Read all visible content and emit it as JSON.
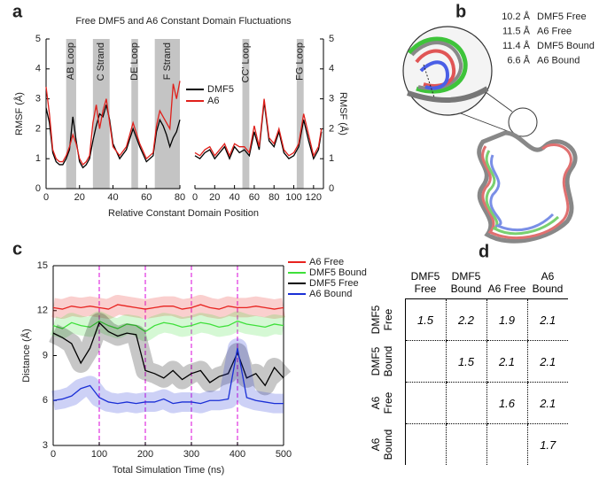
{
  "panels": [
    "a",
    "b",
    "c",
    "d"
  ],
  "chart_data": [
    {
      "type": "line",
      "title": "Free DMF5 and A6 Constant Domain Fluctuations",
      "xlabel": "Relative Constant Domain Position",
      "ylabel": "RMSF (Å)",
      "x": [
        0,
        2,
        4,
        6,
        8,
        10,
        12,
        14,
        16,
        18,
        20,
        22,
        24,
        26,
        28,
        30,
        32,
        34,
        36,
        38,
        40,
        44,
        48,
        52,
        56,
        60,
        64,
        66,
        68,
        70,
        72,
        74,
        76,
        78,
        80
      ],
      "series": [
        {
          "name": "DMF5",
          "color": "#000000",
          "values": [
            2.7,
            2.2,
            1.2,
            0.9,
            0.8,
            0.8,
            1.0,
            1.3,
            2.4,
            1.6,
            0.9,
            0.7,
            0.8,
            1.0,
            1.6,
            2.1,
            2.5,
            2.4,
            2.8,
            2.3,
            1.5,
            1.0,
            1.3,
            2.0,
            1.4,
            0.9,
            1.1,
            1.9,
            2.3,
            2.1,
            1.8,
            1.4,
            1.7,
            1.9,
            2.3
          ]
        },
        {
          "name": "A6",
          "color": "#e0201b",
          "values": [
            3.4,
            2.5,
            1.3,
            1.0,
            0.9,
            0.9,
            1.1,
            1.4,
            1.8,
            1.5,
            1.0,
            0.8,
            0.9,
            1.1,
            2.2,
            2.8,
            2.0,
            2.6,
            3.0,
            2.2,
            1.4,
            1.1,
            1.4,
            2.2,
            1.5,
            1.0,
            1.2,
            2.1,
            2.6,
            2.4,
            2.2,
            2.0,
            3.5,
            3.0,
            3.6
          ]
        }
      ],
      "regions": [
        {
          "label": "AB Loop",
          "range": [
            12,
            18
          ]
        },
        {
          "label": "C Strand",
          "range": [
            28,
            38
          ]
        },
        {
          "label": "DE Loop",
          "range": [
            51,
            55
          ]
        },
        {
          "label": "F Strand",
          "range": [
            65,
            80
          ]
        }
      ],
      "xlim": [
        0,
        80
      ],
      "xticks": [
        0,
        20,
        40,
        60,
        80
      ],
      "ylim": [
        0,
        5
      ],
      "yticks": [
        0,
        1,
        2,
        3,
        4,
        5
      ],
      "legend": "right"
    },
    {
      "type": "line",
      "ylabel": "RMSF (Å)",
      "x": [
        0,
        5,
        10,
        15,
        20,
        25,
        30,
        35,
        40,
        45,
        50,
        55,
        60,
        65,
        70,
        75,
        80,
        85,
        90,
        95,
        100,
        105,
        110,
        115,
        120,
        125,
        128
      ],
      "series": [
        {
          "color": "#000000",
          "values": [
            1.1,
            1.0,
            1.2,
            1.3,
            1.0,
            1.2,
            1.4,
            1.0,
            1.4,
            1.2,
            1.3,
            1.1,
            1.9,
            1.3,
            2.9,
            1.6,
            1.4,
            1.9,
            1.2,
            1.0,
            1.1,
            1.4,
            2.3,
            1.6,
            1.0,
            1.3,
            1.9
          ]
        },
        {
          "color": "#e0201b",
          "values": [
            1.2,
            1.1,
            1.3,
            1.4,
            1.1,
            1.3,
            1.5,
            1.1,
            1.5,
            1.4,
            1.4,
            1.2,
            2.1,
            1.4,
            3.0,
            1.7,
            1.5,
            2.0,
            1.3,
            1.1,
            1.2,
            1.5,
            2.5,
            1.8,
            1.1,
            1.4,
            2.0
          ]
        }
      ],
      "regions": [
        {
          "label": "CC' Loop",
          "range": [
            48,
            55
          ]
        },
        {
          "label": "FG Loop",
          "range": [
            103,
            110
          ]
        }
      ],
      "xlim": [
        0,
        130
      ],
      "xticks": [
        0,
        20,
        40,
        60,
        80,
        100,
        120
      ],
      "ylim": [
        0,
        5
      ],
      "yticks": [
        0,
        1,
        2,
        3,
        4,
        5
      ]
    },
    {
      "type": "line",
      "xlabel": "Total Simulation Time (ns)",
      "ylabel": "Distance (Å)",
      "x": [
        0,
        20,
        40,
        60,
        80,
        100,
        120,
        140,
        160,
        180,
        200,
        220,
        240,
        260,
        280,
        300,
        320,
        340,
        360,
        380,
        400,
        420,
        440,
        460,
        480,
        500
      ],
      "series": [
        {
          "name": "A6 Free",
          "color": "#e8231f",
          "values": [
            12.2,
            12.1,
            12.3,
            12.2,
            12.3,
            12.2,
            12.1,
            12.4,
            12.3,
            12.2,
            12.1,
            12.2,
            12.3,
            12.3,
            12.1,
            12.2,
            12.4,
            12.2,
            12.1,
            12.3,
            12.2,
            12.2,
            12.3,
            12.2,
            12.1,
            12.2
          ]
        },
        {
          "name": "DMF5 Bound",
          "color": "#3ee03a",
          "values": [
            11.0,
            10.8,
            11.2,
            11.0,
            10.9,
            11.3,
            11.0,
            10.8,
            11.1,
            11.0,
            10.6,
            11.0,
            11.2,
            11.1,
            10.9,
            11.0,
            11.2,
            11.1,
            10.9,
            11.0,
            11.3,
            11.1,
            11.0,
            10.9,
            11.1,
            11.0
          ]
        },
        {
          "name": "DMF5 Free",
          "color": "#000000",
          "values": [
            10.5,
            10.2,
            9.8,
            8.5,
            9.5,
            11.2,
            10.6,
            10.3,
            10.5,
            10.4,
            8.0,
            7.8,
            7.5,
            8.0,
            7.4,
            7.8,
            8.0,
            7.2,
            7.6,
            7.8,
            9.2,
            7.5,
            7.8,
            7.0,
            8.2,
            7.5
          ]
        },
        {
          "name": "A6 Bound",
          "color": "#1a2fd6",
          "values": [
            6.0,
            6.1,
            6.3,
            6.8,
            7.0,
            6.2,
            5.9,
            5.8,
            5.9,
            5.8,
            5.9,
            5.9,
            6.1,
            5.8,
            5.9,
            5.9,
            5.8,
            6.0,
            6.0,
            6.1,
            9.5,
            6.2,
            6.0,
            5.9,
            5.8,
            5.8
          ]
        }
      ],
      "vlines": [
        100,
        200,
        300,
        400
      ],
      "vline_color": "#e030e0",
      "xlim": [
        0,
        500
      ],
      "xticks": [
        0,
        100,
        200,
        300,
        400,
        500
      ],
      "ylim": [
        3,
        15
      ],
      "yticks": [
        3,
        6,
        9,
        12,
        15
      ],
      "legend": "upper right"
    }
  ],
  "structure_legend": [
    {
      "distance": "10.2 Å",
      "name": "DMF5 Free",
      "color": "#000000"
    },
    {
      "distance": "11.5 Å",
      "name": "A6 Free",
      "color": "#e8231f"
    },
    {
      "distance": "11.4 Å",
      "name": "DMF5 Bound",
      "color": "#3ec43a"
    },
    {
      "distance": "6.6 Å",
      "name": "A6 Bound",
      "color": "#2a3fd6"
    }
  ],
  "table": {
    "columns": [
      "DMF5 Free",
      "DMF5 Bound",
      "A6 Free",
      "A6 Bound"
    ],
    "rows": [
      {
        "label": "DMF5 Free",
        "cells": [
          1.5,
          2.2,
          1.9,
          2.1
        ]
      },
      {
        "label": "DMF5 Bound",
        "cells": [
          null,
          1.5,
          2.1,
          2.1
        ]
      },
      {
        "label": "A6 Free",
        "cells": [
          null,
          null,
          1.6,
          2.1
        ]
      },
      {
        "label": "A6 Bound",
        "cells": [
          null,
          null,
          null,
          1.7
        ]
      }
    ]
  }
}
